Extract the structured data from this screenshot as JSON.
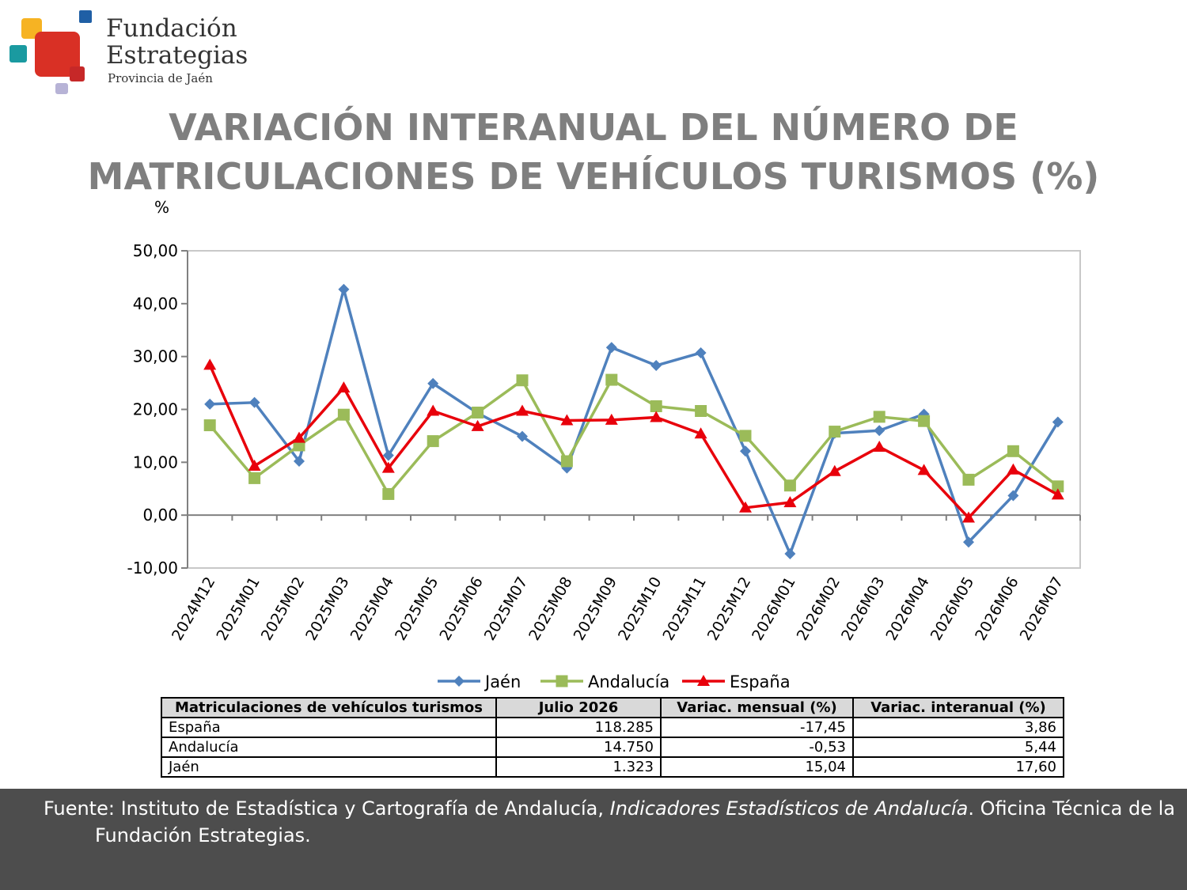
{
  "logo": {
    "line1": "Fundación",
    "line2": "Estrategias",
    "line3": "Provincia de Jaén",
    "colors": [
      "#f6b323",
      "#1f5fa5",
      "#d93025",
      "#1a9aa0",
      "#b7b3d6",
      "#c62828"
    ]
  },
  "title": {
    "line1": "VARIACIÓN INTERANUAL DEL NÚMERO DE",
    "line2": "MATRICULACIONES DE VEHÍCULOS TURISMOS (%)"
  },
  "chart_data": {
    "type": "line",
    "y_unit_label": "%",
    "categories": [
      "2024M12",
      "2025M01",
      "2025M02",
      "2025M03",
      "2025M04",
      "2025M05",
      "2025M06",
      "2025M07",
      "2025M08",
      "2025M09",
      "2025M10",
      "2025M11",
      "2025M12",
      "2026M01",
      "2026M02",
      "2026M03",
      "2026M04",
      "2026M05",
      "2026M06",
      "2026M07"
    ],
    "ylim": [
      -10,
      50
    ],
    "yticks": [
      -10,
      0,
      10,
      20,
      30,
      40,
      50
    ],
    "ytick_labels": [
      "-10,00",
      "0,00",
      "10,00",
      "20,00",
      "30,00",
      "40,00",
      "50,00"
    ],
    "grid": false,
    "legend_position": "bottom",
    "series": [
      {
        "name": "Jaén",
        "color": "#4f81bd",
        "marker": "diamond",
        "values": [
          21.0,
          21.3,
          10.2,
          42.7,
          11.3,
          24.9,
          19.3,
          14.9,
          8.9,
          31.7,
          28.3,
          30.7,
          12.1,
          -7.3,
          15.5,
          16.0,
          19.1,
          -5.1,
          3.7,
          17.6
        ]
      },
      {
        "name": "Andalucía",
        "color": "#9bbb59",
        "marker": "square",
        "values": [
          17.0,
          7.0,
          13.2,
          19.0,
          4.0,
          14.0,
          19.4,
          25.5,
          10.2,
          25.6,
          20.6,
          19.7,
          15.0,
          5.6,
          15.8,
          18.6,
          17.8,
          6.7,
          12.1,
          5.44
        ]
      },
      {
        "name": "España",
        "color": "#e8000b",
        "marker": "triangle",
        "values": [
          28.4,
          9.3,
          14.6,
          24.1,
          8.9,
          19.7,
          16.8,
          19.7,
          17.9,
          18.0,
          18.5,
          15.4,
          1.4,
          2.4,
          8.3,
          12.9,
          8.5,
          -0.5,
          8.6,
          3.86
        ]
      }
    ]
  },
  "table": {
    "headers": [
      "Matriculaciones de vehículos turismos",
      "Julio 2026",
      "Variac. mensual (%)",
      "Variac. interanual (%)"
    ],
    "rows": [
      [
        "España",
        "118.285",
        "-17,45",
        "3,86"
      ],
      [
        "Andalucía",
        "14.750",
        "-0,53",
        "5,44"
      ],
      [
        "Jaén",
        "1.323",
        "15,04",
        "17,60"
      ]
    ]
  },
  "footer": {
    "prefix": "Fuente: Instituto de Estadística y Cartografía de Andalucía, ",
    "italic": "Indicadores Estadísticos de Andalucía",
    "suffix": ". Oficina Técnica de la Fundación Estrategias."
  }
}
